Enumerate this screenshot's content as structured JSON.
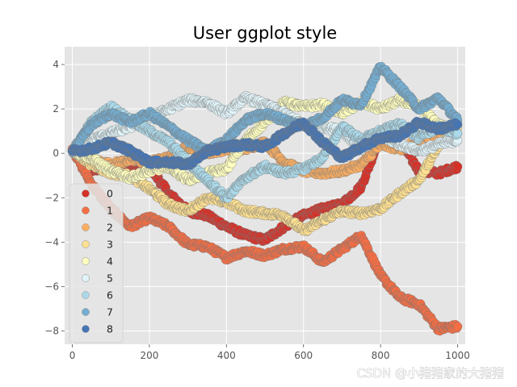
{
  "chart_data": {
    "type": "scatter",
    "title": "User ggplot style",
    "xlabel": "",
    "ylabel": "",
    "xlim": [
      -20,
      1020
    ],
    "ylim": [
      -8.6,
      4.8
    ],
    "xticks": [
      0,
      200,
      400,
      600,
      800,
      1000
    ],
    "yticks": [
      -8,
      -6,
      -4,
      -2,
      0,
      2,
      4
    ],
    "ytick_labels": [
      "−8",
      "−6",
      "−4",
      "−2",
      "0",
      "2",
      "4"
    ],
    "grid": true,
    "legend_position": "center-left",
    "series": [
      {
        "name": "0",
        "color": "#d73027",
        "x": [
          0,
          50,
          100,
          150,
          200,
          250,
          300,
          350,
          400,
          450,
          500,
          550,
          600,
          650,
          700,
          750,
          800,
          850,
          900,
          950,
          1000
        ],
        "y": [
          0.2,
          -0.8,
          -0.5,
          -0.7,
          -0.6,
          -1.8,
          -2.6,
          -2.8,
          -3.3,
          -3.7,
          -3.9,
          -3.3,
          -2.8,
          -2.5,
          -2.3,
          -1.5,
          0.8,
          0.6,
          -0.8,
          -0.9,
          -0.6
        ]
      },
      {
        "name": "1",
        "color": "#f46d43",
        "x": [
          0,
          50,
          100,
          150,
          200,
          250,
          300,
          350,
          400,
          450,
          500,
          550,
          600,
          650,
          700,
          750,
          800,
          850,
          900,
          950,
          1000
        ],
        "y": [
          0.2,
          -1.4,
          -2.5,
          -3.3,
          -2.9,
          -3.3,
          -4.1,
          -4.2,
          -4.7,
          -4.4,
          -4.6,
          -4.3,
          -4.2,
          -4.9,
          -4.3,
          -3.7,
          -5.5,
          -6.5,
          -6.8,
          -7.9,
          -7.8
        ]
      },
      {
        "name": "2",
        "color": "#fdae61",
        "x": [
          0,
          50,
          100,
          150,
          200,
          250,
          300,
          350,
          400,
          450,
          500,
          550,
          600,
          650,
          700,
          750,
          800,
          850,
          900,
          950,
          1000
        ],
        "y": [
          0.1,
          -0.3,
          -0.5,
          -0.3,
          -0.4,
          -0.2,
          0.3,
          0.0,
          0.2,
          0.2,
          0.5,
          -0.4,
          -0.8,
          -0.9,
          -0.8,
          -0.5,
          0.4,
          0.2,
          0.5,
          0.9,
          1.3
        ]
      },
      {
        "name": "3",
        "color": "#fee090",
        "x": [
          0,
          50,
          100,
          150,
          200,
          250,
          300,
          350,
          400,
          450,
          500,
          550,
          600,
          650,
          700,
          750,
          800,
          850,
          900,
          950,
          1000
        ],
        "y": [
          0.1,
          -0.5,
          -0.9,
          -1.0,
          -1.6,
          -2.3,
          -2.6,
          -2.0,
          -2.2,
          -2.6,
          -2.7,
          -2.8,
          -3.5,
          -3.0,
          -2.6,
          -2.7,
          -2.5,
          -1.8,
          -1.2,
          0.3,
          1.2
        ]
      },
      {
        "name": "4",
        "color": "#ffffbf",
        "x": [
          0,
          50,
          100,
          150,
          200,
          250,
          300,
          350,
          400,
          450,
          500,
          550,
          600,
          650,
          700,
          750,
          800,
          850,
          900,
          950,
          1000
        ],
        "y": [
          0.1,
          -0.2,
          -0.8,
          -1.1,
          -0.8,
          -0.6,
          -1.2,
          -0.9,
          -0.7,
          0.6,
          1.4,
          2.3,
          2.1,
          2.2,
          1.8,
          2.3,
          2.0,
          2.4,
          2.1,
          1.3,
          0.9
        ]
      },
      {
        "name": "5",
        "color": "#e0f3f8",
        "x": [
          0,
          50,
          100,
          150,
          200,
          250,
          300,
          350,
          400,
          450,
          500,
          550,
          600,
          650,
          700,
          750,
          800,
          850,
          900,
          950,
          1000
        ],
        "y": [
          0.1,
          0.6,
          0.9,
          1.2,
          1.6,
          2.0,
          2.4,
          2.3,
          1.8,
          2.5,
          2.2,
          1.8,
          1.3,
          1.2,
          1.0,
          0.2,
          0.8,
          0.4,
          0.1,
          0.4,
          0.6
        ]
      },
      {
        "name": "6",
        "color": "#abd9e9",
        "x": [
          0,
          50,
          100,
          150,
          200,
          250,
          300,
          350,
          400,
          450,
          500,
          550,
          600,
          650,
          700,
          750,
          800,
          850,
          900,
          950,
          1000
        ],
        "y": [
          0.1,
          1.4,
          2.1,
          1.5,
          1.0,
          0.5,
          -0.4,
          -1.2,
          -2.0,
          -1.1,
          -0.6,
          -0.9,
          -0.7,
          -0.2,
          1.2,
          0.6,
          1.0,
          1.3,
          0.7,
          1.2,
          0.9
        ]
      },
      {
        "name": "7",
        "color": "#74add1",
        "x": [
          0,
          50,
          100,
          150,
          200,
          250,
          300,
          350,
          400,
          450,
          500,
          550,
          600,
          650,
          700,
          750,
          800,
          850,
          900,
          950,
          1000
        ],
        "y": [
          0.1,
          1.3,
          1.8,
          1.4,
          1.8,
          1.2,
          0.6,
          0.1,
          0.6,
          1.5,
          1.8,
          1.5,
          1.2,
          1.6,
          2.4,
          2.2,
          3.9,
          3.0,
          2.0,
          2.5,
          1.5
        ]
      },
      {
        "name": "8",
        "color": "#4575b4",
        "x": [
          0,
          50,
          100,
          150,
          200,
          250,
          300,
          350,
          400,
          450,
          500,
          550,
          600,
          650,
          700,
          750,
          800,
          850,
          900,
          950,
          1000
        ],
        "y": [
          0.1,
          0.2,
          0.5,
          0.1,
          -0.4,
          -0.4,
          -0.5,
          0.1,
          0.3,
          0.4,
          0.3,
          0.9,
          1.4,
          0.5,
          -0.2,
          0.3,
          0.7,
          0.8,
          1.4,
          1.1,
          1.3
        ]
      }
    ]
  },
  "watermark": "CSDN @小猪猪家的大猪猪"
}
